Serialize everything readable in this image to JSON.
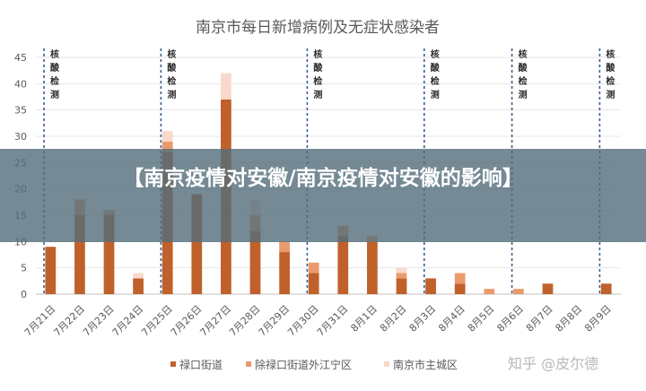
{
  "chart_data": {
    "type": "bar",
    "title": "南京市每日新增病例及无症状感染者",
    "categories": [
      "7月21日",
      "7月22日",
      "7月23日",
      "7月24日",
      "7月25日",
      "7月26日",
      "7月27日",
      "7月28日",
      "7月29日",
      "7月30日",
      "7月31日",
      "8月1日",
      "8月2日",
      "8月3日",
      "8月4日",
      "8月5日",
      "8月6日",
      "8月7日",
      "8月8日",
      "8月9日"
    ],
    "series": [
      {
        "name": "禄口街道",
        "color": "#c0612b",
        "values": [
          9,
          15,
          15,
          3,
          27,
          19,
          37,
          12,
          8,
          4,
          11,
          10,
          3,
          3,
          2,
          0,
          0,
          2,
          0,
          2
        ]
      },
      {
        "name": "除禄口街道外江宁区",
        "color": "#eb9a6c",
        "values": [
          0,
          3,
          1,
          0,
          2,
          0,
          0,
          3,
          2,
          2,
          2,
          1,
          1,
          0,
          2,
          1,
          1,
          0,
          0,
          0
        ]
      },
      {
        "name": "南京市主城区",
        "color": "#f8d9cc",
        "values": [
          0,
          0,
          0,
          1,
          2,
          0,
          5,
          3,
          0,
          0,
          0,
          0,
          1,
          0,
          0,
          0,
          0,
          0,
          0,
          0
        ]
      }
    ],
    "ylim": [
      0,
      45
    ],
    "yticks": [
      0,
      5,
      10,
      15,
      20,
      25,
      30,
      35,
      40,
      45
    ],
    "testing_markers": {
      "label": "核酸检测",
      "after_category_index": [
        -1,
        3,
        8,
        12,
        15,
        18
      ]
    },
    "annotation_label": "核酸检测"
  },
  "overlay": {
    "banner_text": "【南京疫情对安徽/南京疫情对安徽的影响】",
    "watermark": "知乎 @皮尔德"
  }
}
